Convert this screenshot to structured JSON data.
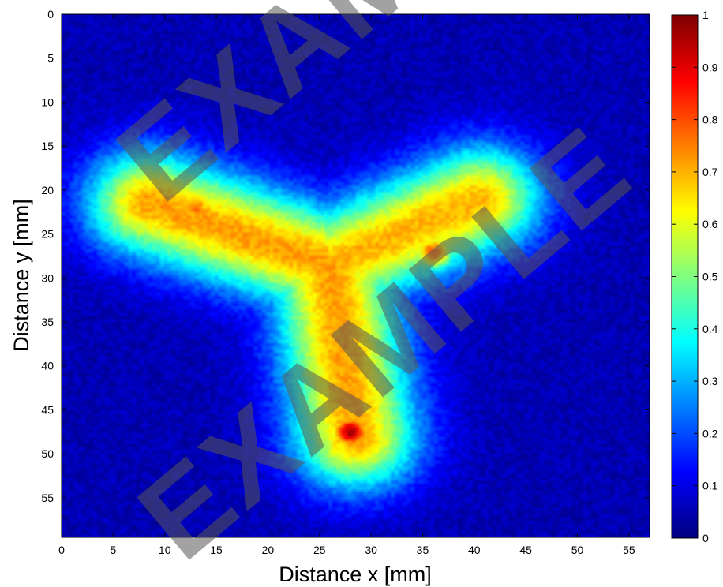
{
  "chart_data": {
    "type": "heatmap",
    "title": "",
    "xlabel": "Distance x [mm]",
    "ylabel": "Distance y [mm]",
    "xlim": [
      0,
      57
    ],
    "ylim": [
      0,
      59.5
    ],
    "y_axis_direction": "down",
    "x_ticks": [
      0,
      5,
      10,
      15,
      20,
      25,
      30,
      35,
      40,
      45,
      50,
      55
    ],
    "y_ticks": [
      0,
      5,
      10,
      15,
      20,
      25,
      30,
      35,
      40,
      45,
      50,
      55
    ],
    "colormap": "jet",
    "colorbar": {
      "range": [
        0,
        1
      ],
      "ticks": [
        0,
        0.1,
        0.2,
        0.3,
        0.4,
        0.5,
        0.6,
        0.7,
        0.8,
        0.9,
        1
      ],
      "tick_labels": [
        "0",
        "0.1",
        "0.2",
        "0.3",
        "0.4",
        "0.5",
        "0.6",
        "0.7",
        "0.8",
        "0.9",
        "1"
      ]
    },
    "background_value": 0.05,
    "intensity_model": "Y-shaped intensity distribution; value at a point = background + (peak - background) * exp(-d^2 / (2 * spread^2)), d = distance in mm to nearest arm segment",
    "arms": [
      {
        "name": "left arm",
        "from": [
          8.5,
          21.5
        ],
        "to": [
          26,
          28.5
        ],
        "peak": 0.72
      },
      {
        "name": "right arm",
        "from": [
          40.5,
          21
        ],
        "to": [
          26,
          28.5
        ],
        "peak": 0.7
      },
      {
        "name": "stem",
        "from": [
          26,
          28.5
        ],
        "to": [
          28.5,
          48
        ],
        "peak": 0.72
      }
    ],
    "spread_mm": 4.2,
    "hot_spots": [
      {
        "x": 28,
        "y": 47.5,
        "value": 0.97
      },
      {
        "x": 36,
        "y": 27,
        "value": 0.8
      },
      {
        "x": 13,
        "y": 22,
        "value": 0.78
      }
    ]
  },
  "watermark": {
    "text_upper": "EXAMPLE",
    "text_lower": "EXAMPLE"
  }
}
